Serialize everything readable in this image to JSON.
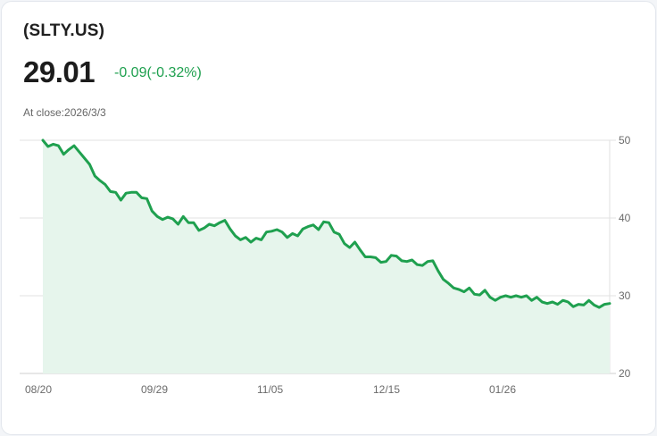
{
  "header": {
    "ticker": "(SLTY.US)",
    "price": "29.01",
    "change": "-0.09(-0.32%)",
    "close_label": "At close:2026/3/3"
  },
  "colors": {
    "line": "#1fa04f",
    "fill": "#e6f5ec",
    "change_text": "#1fa04f",
    "grid": "#e2e2e2"
  },
  "chart_data": {
    "type": "area",
    "title": "(SLTY.US)",
    "xlabel": "",
    "ylabel": "",
    "ylim": [
      20,
      50
    ],
    "y_ticks": [
      50,
      40,
      30,
      20
    ],
    "y_axis_position": "right",
    "x_tick_labels": [
      "08/20",
      "09/29",
      "11/05",
      "12/15",
      "01/26"
    ],
    "grid": true,
    "legend": "none",
    "series": [
      {
        "name": "SLTY.US close",
        "values": [
          50.0,
          49.2,
          49.5,
          49.3,
          48.2,
          48.8,
          49.3,
          48.5,
          47.7,
          46.9,
          45.4,
          44.8,
          44.3,
          43.4,
          43.3,
          42.3,
          43.2,
          43.3,
          43.3,
          42.6,
          42.5,
          40.9,
          40.2,
          39.8,
          40.1,
          39.9,
          39.2,
          40.2,
          39.4,
          39.4,
          38.4,
          38.7,
          39.2,
          39.0,
          39.4,
          39.7,
          38.6,
          37.7,
          37.2,
          37.5,
          36.9,
          37.4,
          37.2,
          38.2,
          38.3,
          38.5,
          38.2,
          37.5,
          38.0,
          37.7,
          38.6,
          38.9,
          39.1,
          38.5,
          39.5,
          39.4,
          38.2,
          37.9,
          36.7,
          36.2,
          36.9,
          35.9,
          35.0,
          35.0,
          34.9,
          34.3,
          34.4,
          35.2,
          35.1,
          34.5,
          34.4,
          34.6,
          34.0,
          33.9,
          34.4,
          34.5,
          33.2,
          32.1,
          31.6,
          31.0,
          30.8,
          30.5,
          31.0,
          30.2,
          30.1,
          30.7,
          29.8,
          29.4,
          29.8,
          30.0,
          29.8,
          30.0,
          29.8,
          30.0,
          29.4,
          29.8,
          29.2,
          29.0,
          29.2,
          28.9,
          29.4,
          29.2,
          28.6,
          28.9,
          28.8,
          29.4,
          28.8,
          28.5,
          28.9,
          29.0
        ]
      }
    ]
  }
}
